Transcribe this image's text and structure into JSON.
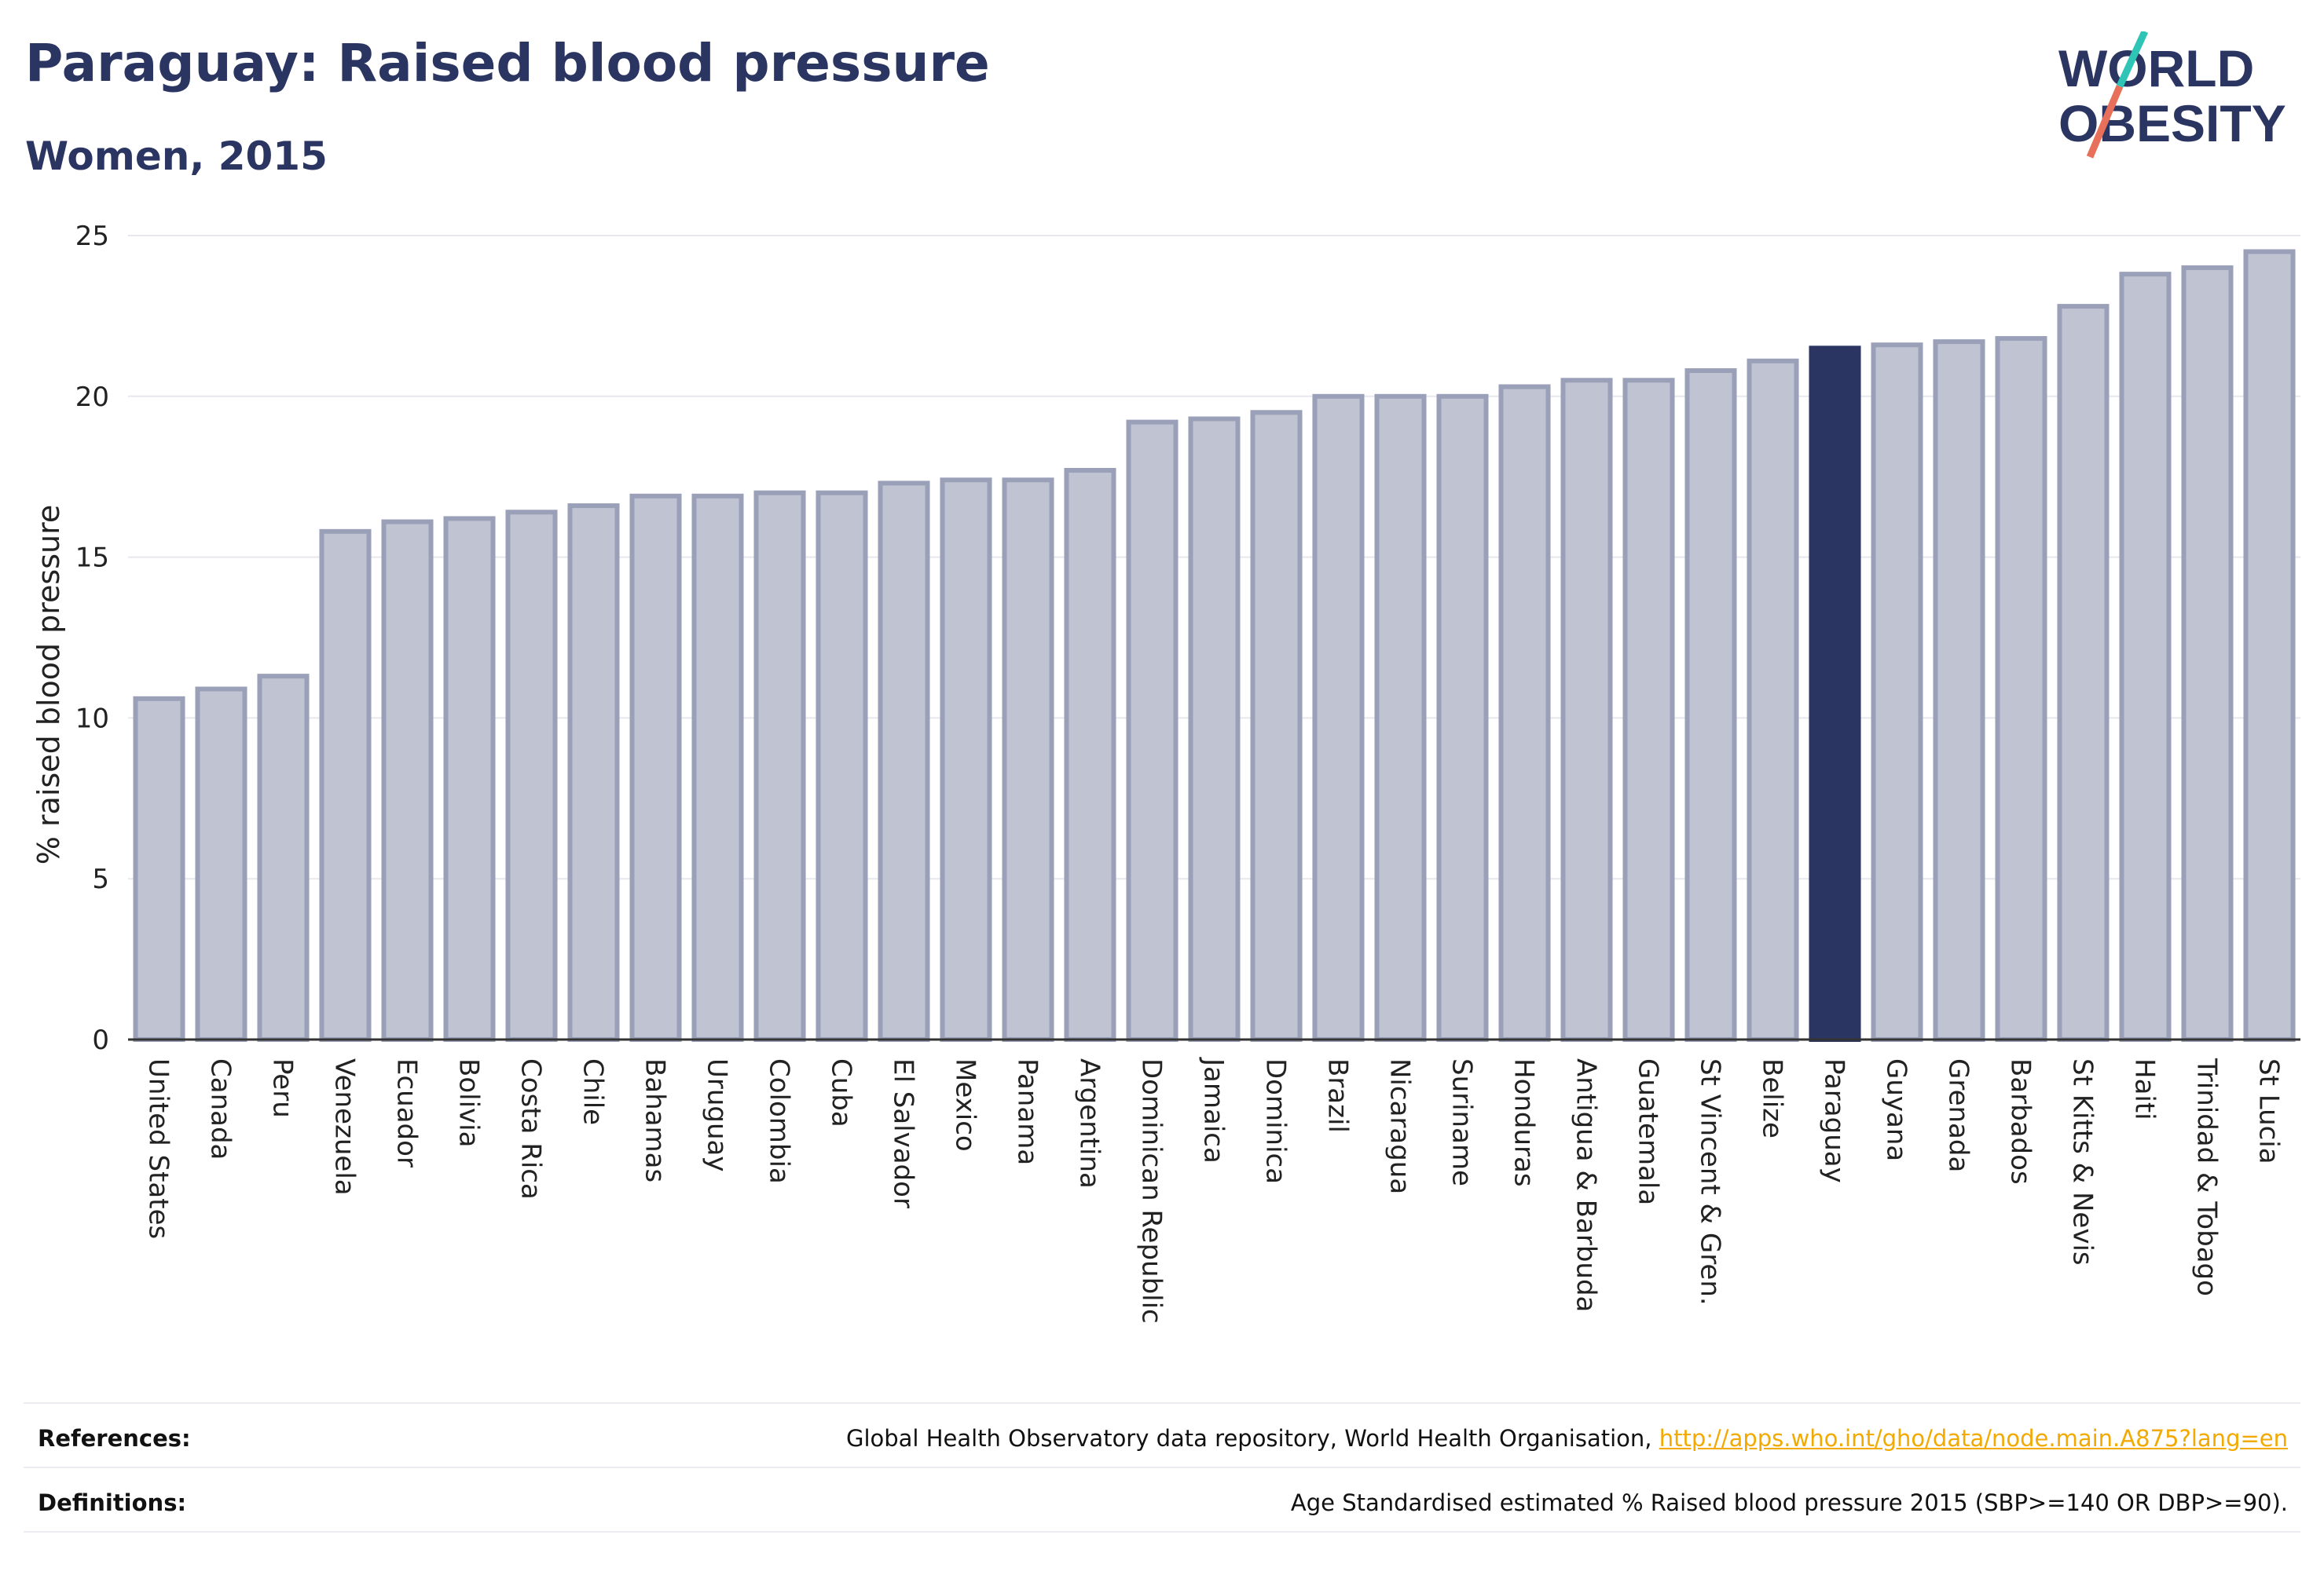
{
  "title": "Paraguay: Raised blood pressure",
  "subtitle": "Women, 2015",
  "logo": {
    "line1": "WORLD",
    "line2": "OBESITY"
  },
  "chart_data": {
    "type": "bar",
    "ylabel": "% raised blood pressure",
    "xlabel": "",
    "ylim": [
      0,
      25
    ],
    "yticks": [
      0,
      5,
      10,
      15,
      20,
      25
    ],
    "highlight": "Paraguay",
    "grid": true,
    "colors": {
      "bar": "#c0c4d2",
      "bar_edge": "#9aa0b8",
      "highlight": "#2b3561",
      "grid": "#e6e8ee",
      "axis": "#333333"
    },
    "categories": [
      "United States",
      "Canada",
      "Peru",
      "Venezuela",
      "Ecuador",
      "Bolivia",
      "Costa Rica",
      "Chile",
      "Bahamas",
      "Uruguay",
      "Colombia",
      "Cuba",
      "El Salvador",
      "Mexico",
      "Panama",
      "Argentina",
      "Dominican Republic",
      "Jamaica",
      "Dominica",
      "Brazil",
      "Nicaragua",
      "Suriname",
      "Honduras",
      "Antigua & Barbuda",
      "Guatemala",
      "St Vincent & Gren.",
      "Belize",
      "Paraguay",
      "Guyana",
      "Grenada",
      "Barbados",
      "St Kitts & Nevis",
      "Haiti",
      "Trinidad & Tobago",
      "St Lucia"
    ],
    "values": [
      10.6,
      10.9,
      11.3,
      15.8,
      16.1,
      16.2,
      16.4,
      16.6,
      16.9,
      16.9,
      17.0,
      17.0,
      17.3,
      17.4,
      17.4,
      17.7,
      19.2,
      19.3,
      19.5,
      20.0,
      20.0,
      20.0,
      20.3,
      20.5,
      20.5,
      20.8,
      21.1,
      21.5,
      21.6,
      21.7,
      21.8,
      22.8,
      23.8,
      24.0,
      24.5
    ]
  },
  "footer": {
    "references_label": "References:",
    "references_text": "Global Health Observatory data repository, World Health Organisation, ",
    "references_link": "http://apps.who.int/gho/data/node.main.A875?lang=en",
    "definitions_label": "Definitions:",
    "definitions_text": "Age Standardised estimated % Raised blood pressure 2015 (SBP>=140 OR DBP>=90)."
  }
}
